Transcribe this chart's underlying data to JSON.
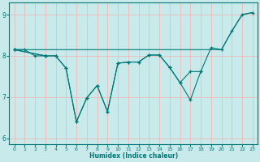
{
  "xlabel": "Humidex (Indice chaleur)",
  "bg_color": "#c8eaea",
  "grid_color": "#f0b8b8",
  "line_color": "#007878",
  "xlim": [
    -0.5,
    23.5
  ],
  "ylim": [
    5.85,
    9.3
  ],
  "yticks": [
    6,
    7,
    8,
    9
  ],
  "xticks": [
    0,
    1,
    2,
    3,
    4,
    5,
    6,
    7,
    8,
    9,
    10,
    11,
    12,
    13,
    14,
    15,
    16,
    17,
    18,
    19,
    20,
    21,
    22,
    23
  ],
  "series": [
    {
      "x": [
        0,
        20,
        21,
        22,
        23
      ],
      "y": [
        8.15,
        8.15,
        8.6,
        9.0,
        9.05
      ],
      "has_markers": false
    },
    {
      "x": [
        0,
        1,
        2,
        3
      ],
      "y": [
        8.15,
        8.15,
        8.0,
        8.0
      ],
      "has_markers": true
    },
    {
      "x": [
        0,
        3,
        4,
        5,
        6,
        7,
        8,
        9,
        10,
        11,
        12,
        13,
        14,
        15,
        16,
        17,
        18,
        19,
        20,
        21,
        22,
        23
      ],
      "y": [
        8.15,
        8.0,
        8.0,
        7.7,
        6.4,
        6.98,
        7.28,
        6.65,
        7.82,
        7.85,
        7.85,
        8.02,
        8.02,
        7.72,
        7.35,
        6.93,
        7.62,
        8.2,
        8.15,
        8.6,
        9.0,
        9.05
      ],
      "has_markers": true
    },
    {
      "x": [
        0,
        3,
        4,
        5,
        6,
        7,
        8,
        9,
        10,
        11,
        12,
        13,
        14,
        15,
        16,
        17,
        18
      ],
      "y": [
        8.15,
        8.0,
        8.0,
        7.7,
        6.4,
        6.98,
        7.28,
        6.65,
        7.82,
        7.85,
        7.85,
        8.02,
        8.02,
        7.72,
        7.35,
        7.62,
        7.62
      ],
      "has_markers": true
    }
  ]
}
